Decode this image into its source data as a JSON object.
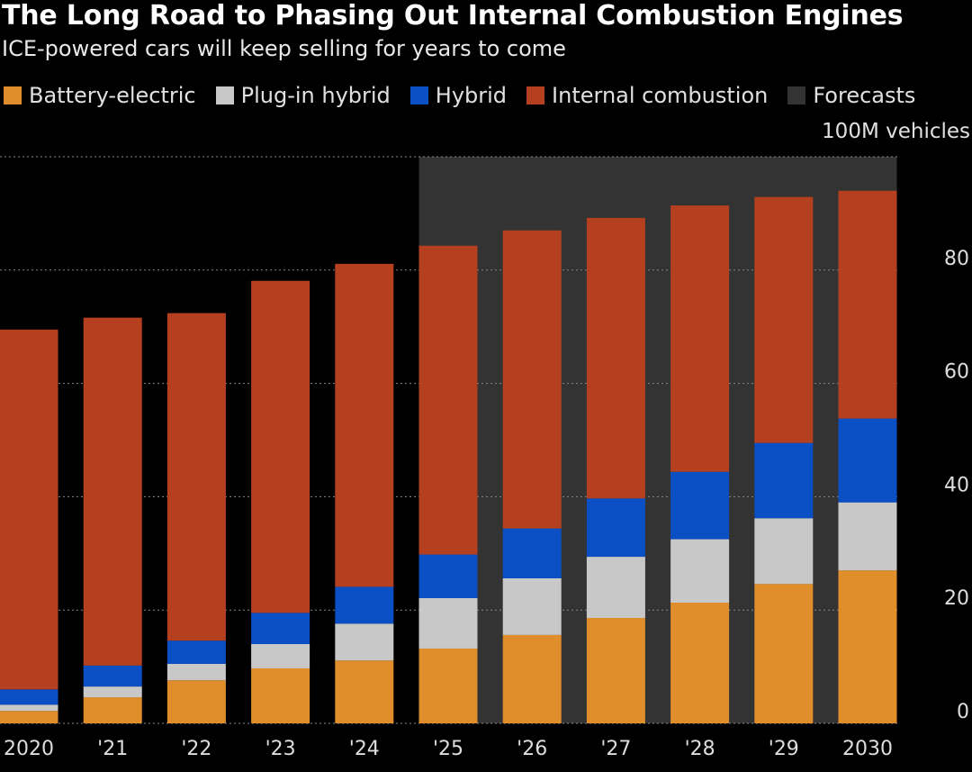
{
  "chart_data": {
    "type": "bar",
    "stacked": true,
    "title": "The Long Road to Phasing Out Internal Combustion Engines",
    "subtitle": "ICE-powered cars will keep selling for years to come",
    "unit_label": "100M vehicles",
    "categories": [
      "2020",
      "'21",
      "'22",
      "'23",
      "'24",
      "'25",
      "'26",
      "'27",
      "'28",
      "'29",
      "2030"
    ],
    "series": [
      {
        "name": "Battery-electric",
        "color": "#e08e2b",
        "values": [
          2.2,
          4.6,
          7.6,
          9.7,
          11.1,
          13.2,
          15.6,
          18.6,
          21.3,
          24.6,
          27.0
        ]
      },
      {
        "name": "Plug-in hybrid",
        "color": "#c8c8c8",
        "values": [
          1.1,
          1.9,
          2.9,
          4.3,
          6.5,
          8.9,
          10.0,
          10.8,
          11.2,
          11.6,
          12.0
        ]
      },
      {
        "name": "Hybrid",
        "color": "#0a4fc4",
        "values": [
          2.7,
          3.7,
          4.1,
          5.5,
          6.5,
          7.7,
          8.8,
          10.3,
          11.9,
          13.3,
          14.8
        ]
      },
      {
        "name": "Internal combustion",
        "color": "#b5401f",
        "values": [
          63.5,
          61.4,
          57.8,
          58.6,
          57.0,
          54.5,
          52.6,
          49.5,
          47.0,
          43.4,
          40.2
        ]
      }
    ],
    "forecast": {
      "name": "Forecasts",
      "color": "#333333",
      "from": "'25",
      "to": "2030"
    },
    "yticks": [
      "0",
      "20",
      "40",
      "60",
      "80"
    ],
    "ylim": [
      0,
      100
    ],
    "grid": true,
    "legend_position": "top"
  }
}
